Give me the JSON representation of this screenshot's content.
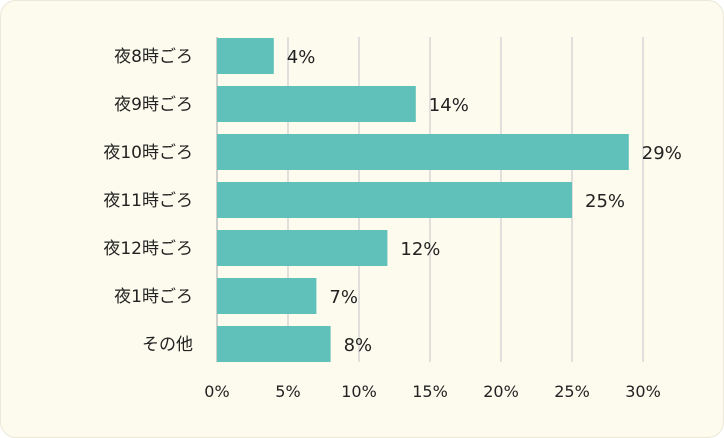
{
  "chart_data": {
    "type": "bar",
    "orientation": "horizontal",
    "categories": [
      "夜8時ごろ",
      "夜9時ごろ",
      "夜10時ごろ",
      "夜11時ごろ",
      "夜12時ごろ",
      "夜1時ごろ",
      "その他"
    ],
    "values": [
      4,
      14,
      29,
      25,
      12,
      7,
      8
    ],
    "value_labels": [
      "4%",
      "14%",
      "29%",
      "25%",
      "12%",
      "7%",
      "8%"
    ],
    "x_ticks": [
      "0%",
      "5%",
      "10%",
      "15%",
      "20%",
      "25%",
      "30%"
    ],
    "xlim": [
      0,
      30
    ],
    "grid": true,
    "colors": {
      "bar": "#5fc1ba",
      "grid": "#d6d6d6",
      "background": "#fdfbee"
    }
  }
}
